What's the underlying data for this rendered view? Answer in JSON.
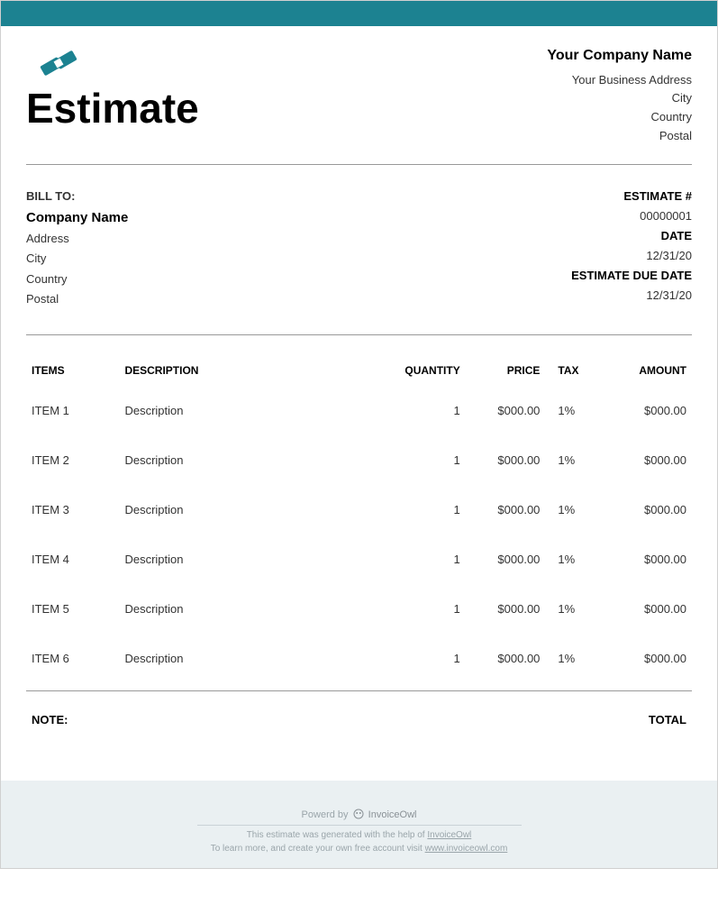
{
  "colors": {
    "accent": "#1c8291",
    "footer_bg": "#eaf0f2",
    "text_muted": "#9aa5aa",
    "divider": "#999999"
  },
  "header": {
    "title": "Estimate",
    "company_name": "Your Company Name",
    "address": "Your Business Address",
    "city": "City",
    "country": "Country",
    "postal": "Postal"
  },
  "bill_to": {
    "label": "BILL TO:",
    "company": "Company Name",
    "address": "Address",
    "city": "City",
    "country": "Country",
    "postal": "Postal"
  },
  "meta": {
    "estimate_num_label": "ESTIMATE #",
    "estimate_num": "00000001",
    "date_label": "DATE",
    "date": "12/31/20",
    "due_label": "ESTIMATE DUE DATE",
    "due": "12/31/20"
  },
  "table": {
    "columns": {
      "items": "ITEMS",
      "description": "DESCRIPTION",
      "quantity": "QUANTITY",
      "price": "PRICE",
      "tax": "TAX",
      "amount": "AMOUNT"
    },
    "rows": [
      {
        "item": "ITEM 1",
        "desc": "Description",
        "qty": "1",
        "price": "$000.00",
        "tax": "1%",
        "amount": "$000.00"
      },
      {
        "item": "ITEM 2",
        "desc": "Description",
        "qty": "1",
        "price": "$000.00",
        "tax": "1%",
        "amount": "$000.00"
      },
      {
        "item": "ITEM 3",
        "desc": "Description",
        "qty": "1",
        "price": "$000.00",
        "tax": "1%",
        "amount": "$000.00"
      },
      {
        "item": "ITEM 4",
        "desc": "Description",
        "qty": "1",
        "price": "$000.00",
        "tax": "1%",
        "amount": "$000.00"
      },
      {
        "item": "ITEM 5",
        "desc": "Description",
        "qty": "1",
        "price": "$000.00",
        "tax": "1%",
        "amount": "$000.00"
      },
      {
        "item": "ITEM 6",
        "desc": "Description",
        "qty": "1",
        "price": "$000.00",
        "tax": "1%",
        "amount": "$000.00"
      }
    ]
  },
  "note": {
    "label": "NOTE:",
    "total_label": "TOTAL"
  },
  "footer": {
    "powered_by": "Powerd by",
    "brand": "InvoiceOwl",
    "line1_a": "This estimate was generated with the help of ",
    "line1_b": "InvoiceOwl",
    "line2_a": "To learn more, and create your own free account visit ",
    "line2_b": "www.invoiceowl.com"
  }
}
